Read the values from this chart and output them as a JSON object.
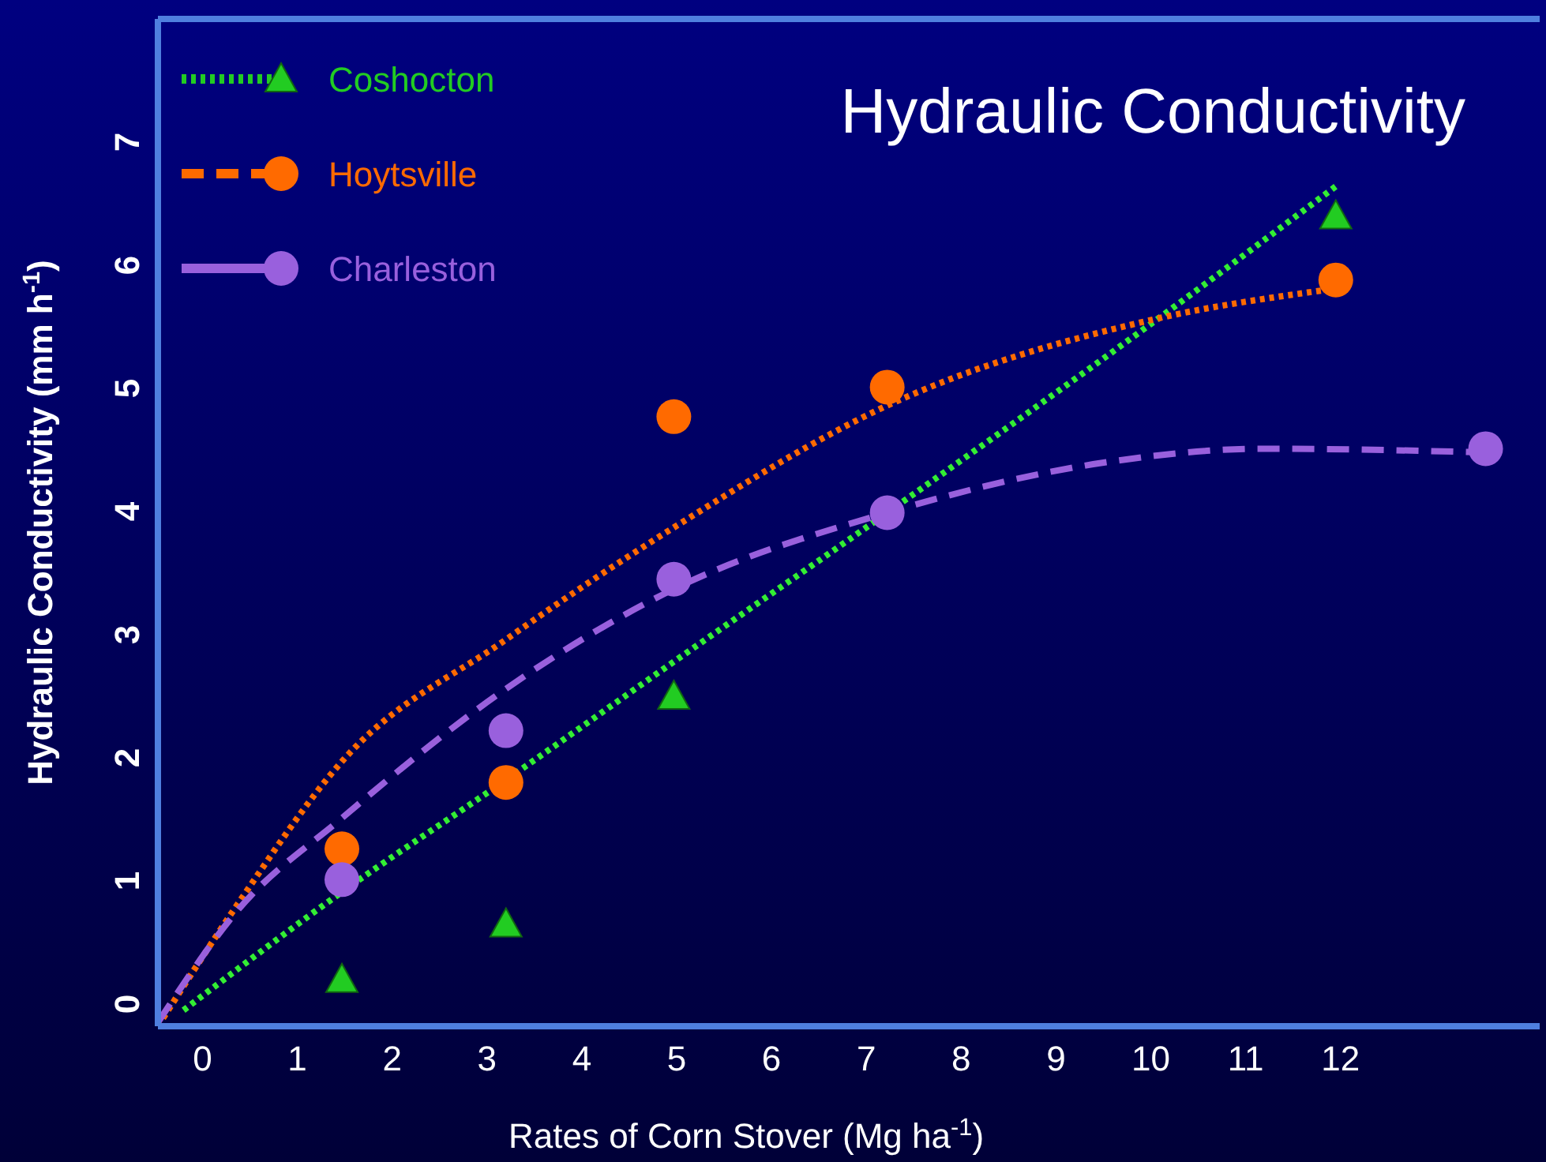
{
  "chart_data": {
    "type": "scatter",
    "title": "Hydraulic Conductivity",
    "xlabel": "Rates of Corn Stover (Mg ha$^{-1}$)",
    "ylabel": "Hydraulic Conductivity (mm h$^{-1}$)",
    "xlim": [
      -0.47,
      14.1
    ],
    "xticks": [
      0,
      1,
      2,
      3,
      4,
      5,
      6,
      7,
      8,
      9,
      10,
      11,
      12
    ],
    "ylim": [
      -0.18,
      8
    ],
    "yticks": [
      0,
      1,
      2,
      3,
      4,
      5,
      6,
      7
    ],
    "grid": false,
    "legend": "top left",
    "series": [
      {
        "name": "Coshocton",
        "marker": "triangle",
        "line_style": "dotted",
        "color": "#22cc22",
        "x": [
          1.47,
          3.2,
          4.97,
          11.95
        ],
        "values": [
          0.2,
          0.65,
          2.5,
          6.4
        ]
      },
      {
        "name": "Hoytsville",
        "marker": "circle",
        "line_style": "dashed",
        "color": "#ff6a00",
        "x": [
          1.47,
          3.2,
          4.97,
          7.22,
          11.95
        ],
        "values": [
          1.26,
          1.8,
          4.77,
          5.01,
          5.88
        ]
      },
      {
        "name": "Charleston",
        "marker": "circle",
        "line_style": "solid",
        "color": "#9960dd",
        "x": [
          1.47,
          3.2,
          4.97,
          7.22,
          13.53
        ],
        "values": [
          1.01,
          2.22,
          3.45,
          3.99,
          4.51
        ]
      },
      {
        "type": "line",
        "line_style": "dotted",
        "color": "#33ee33",
        "x": [
          -0.2,
          1.47,
          3.2,
          4.97,
          7.22,
          10.03,
          11.95
        ],
        "values": [
          -0.05,
          0.91,
          1.82,
          2.78,
          3.99,
          5.54,
          6.64
        ]
      },
      {
        "type": "line",
        "line_style": "dotted",
        "color": "#ff6a00",
        "x": [
          -0.47,
          0.37,
          1.47,
          3.2,
          4.97,
          7.22,
          10.03,
          11.95
        ],
        "values": [
          -0.18,
          0.81,
          1.97,
          2.96,
          3.87,
          4.86,
          5.56,
          5.81
        ]
      },
      {
        "type": "line",
        "line_style": "dashed",
        "color": "#9960dd",
        "x": [
          -0.47,
          0.37,
          1.47,
          3.2,
          4.97,
          7.22,
          9.53,
          11.2,
          13.53
        ],
        "values": [
          -0.15,
          0.76,
          1.51,
          2.56,
          3.37,
          3.99,
          4.4,
          4.51,
          4.48
        ]
      }
    ]
  }
}
